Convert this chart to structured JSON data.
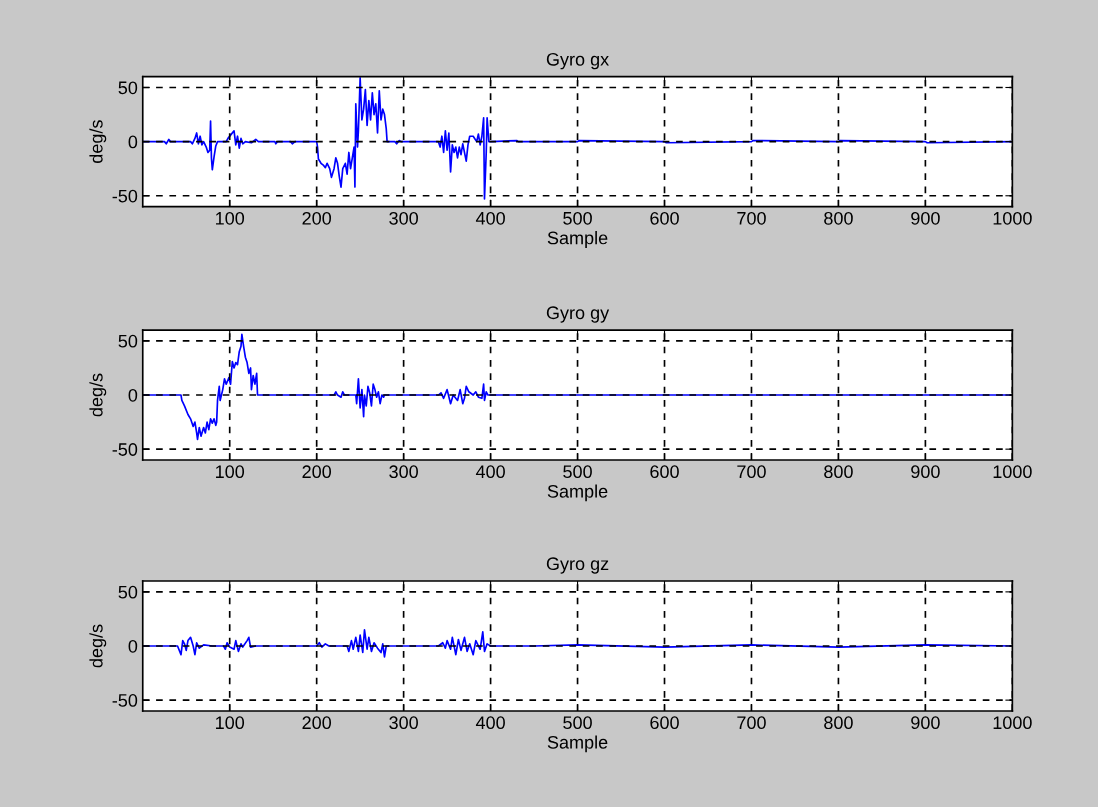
{
  "chart_data": [
    {
      "type": "line",
      "title": "Gyro gx",
      "xlabel": "Sample",
      "ylabel": "deg/s",
      "xlim": [
        0,
        1000
      ],
      "ylim": [
        -60,
        60
      ],
      "xticks": [
        100,
        200,
        300,
        400,
        500,
        600,
        700,
        800,
        900,
        1000
      ],
      "yticks": [
        -50,
        0,
        50
      ],
      "grid": true,
      "line_style": "solid",
      "series": [
        {
          "color": "#0000ff",
          "x": [
            0,
            25,
            27,
            30,
            32,
            55,
            57,
            60,
            62,
            64,
            66,
            68,
            70,
            73,
            75,
            77,
            78,
            79,
            80,
            82,
            84,
            86,
            96,
            98,
            101,
            105,
            107,
            109,
            111,
            113,
            115,
            118,
            125,
            130,
            133,
            152,
            153,
            155,
            170,
            172,
            175,
            200,
            201,
            202,
            205,
            208,
            210,
            212,
            215,
            217,
            220,
            222,
            224,
            226,
            228,
            230,
            233,
            235,
            237,
            239,
            241,
            243,
            244,
            245,
            247,
            248,
            250,
            252,
            254,
            256,
            258,
            260,
            262,
            264,
            266,
            268,
            270,
            272,
            274,
            276,
            278,
            280,
            281,
            290,
            292,
            295,
            297,
            340,
            342,
            344,
            346,
            348,
            350,
            352,
            354,
            356,
            358,
            360,
            362,
            364,
            366,
            368,
            372,
            374,
            376,
            380,
            384,
            386,
            388,
            390,
            392,
            393,
            395,
            396,
            398,
            400,
            430,
            432,
            500,
            502,
            600,
            602,
            700,
            702,
            800,
            802,
            900,
            902,
            1000
          ],
          "values": [
            0,
            0,
            -2,
            2,
            0,
            0,
            -2,
            3,
            8,
            -2,
            5,
            -3,
            0,
            -5,
            -10,
            -8,
            19,
            -15,
            -26,
            -14,
            -4,
            0,
            0,
            3,
            6,
            10,
            -3,
            5,
            -6,
            3,
            -2,
            0,
            -1,
            2,
            0,
            0,
            -2,
            0,
            0,
            -2,
            0,
            0,
            -5,
            -16,
            -20,
            -22,
            -24,
            -20,
            -25,
            -33,
            -25,
            -15,
            -20,
            -32,
            -42,
            -25,
            -20,
            -30,
            -10,
            -25,
            -15,
            -5,
            -42,
            35,
            -5,
            10,
            59,
            20,
            30,
            48,
            15,
            38,
            20,
            45,
            25,
            35,
            8,
            47,
            20,
            30,
            25,
            12,
            0,
            0,
            -2,
            1,
            0,
            0,
            -5,
            5,
            -10,
            10,
            -8,
            8,
            -28,
            -3,
            -10,
            -5,
            -15,
            -5,
            -12,
            -2,
            -18,
            -3,
            5,
            5,
            0,
            7,
            -3,
            5,
            22,
            -53,
            -10,
            22,
            0,
            0,
            1,
            0,
            0,
            1,
            0,
            -1,
            0,
            1,
            0,
            1,
            0,
            -1,
            0
          ]
        }
      ]
    },
    {
      "type": "line",
      "title": "Gyro gy",
      "xlabel": "Sample",
      "ylabel": "deg/s",
      "xlim": [
        0,
        1000
      ],
      "ylim": [
        -60,
        60
      ],
      "xticks": [
        100,
        200,
        300,
        400,
        500,
        600,
        700,
        800,
        900,
        1000
      ],
      "yticks": [
        -50,
        0,
        50
      ],
      "grid": true,
      "line_style": "solid",
      "series": [
        {
          "color": "#0000ff",
          "x": [
            0,
            44,
            45,
            48,
            52,
            55,
            58,
            60,
            62,
            63,
            65,
            67,
            70,
            72,
            74,
            76,
            78,
            80,
            82,
            84,
            85,
            86,
            88,
            89,
            92,
            94,
            96,
            99,
            101,
            103,
            105,
            107,
            109,
            111,
            113,
            114,
            116,
            118,
            120,
            122,
            124,
            125,
            127,
            129,
            131,
            132,
            134,
            220,
            222,
            224,
            228,
            230,
            232,
            245,
            246,
            248,
            250,
            252,
            254,
            255,
            257,
            259,
            261,
            263,
            265,
            267,
            269,
            271,
            273,
            275,
            277,
            278,
            340,
            343,
            346,
            350,
            354,
            357,
            362,
            365,
            368,
            370,
            372,
            375,
            380,
            383,
            386,
            390,
            392,
            393,
            395,
            397,
            1000
          ],
          "values": [
            0,
            0,
            -5,
            -10,
            -18,
            -22,
            -29,
            -25,
            -35,
            -41,
            -30,
            -38,
            -30,
            -35,
            -25,
            -32,
            -22,
            -26,
            -22,
            -28,
            -25,
            -5,
            8,
            -5,
            5,
            15,
            10,
            16,
            10,
            31,
            25,
            30,
            28,
            40,
            45,
            56,
            45,
            35,
            30,
            20,
            25,
            5,
            18,
            10,
            20,
            0,
            0,
            0,
            3,
            0,
            -2,
            3,
            0,
            0,
            -8,
            15,
            -12,
            5,
            -20,
            0,
            -10,
            8,
            2,
            -10,
            10,
            5,
            -2,
            3,
            -8,
            0,
            -2,
            0,
            0,
            2,
            -3,
            5,
            -8,
            0,
            -5,
            5,
            -8,
            -3,
            8,
            3,
            0,
            3,
            -2,
            -3,
            10,
            -5,
            3,
            0,
            0
          ]
        }
      ]
    },
    {
      "type": "line",
      "title": "Gyro gz",
      "xlabel": "Sample",
      "ylabel": "deg/s",
      "xlim": [
        0,
        1000
      ],
      "ylim": [
        -60,
        60
      ],
      "xticks": [
        100,
        200,
        300,
        400,
        500,
        600,
        700,
        800,
        900,
        1000
      ],
      "yticks": [
        -50,
        0,
        50
      ],
      "grid": true,
      "line_style": "solid",
      "series": [
        {
          "color": "#0000ff",
          "x": [
            0,
            40,
            44,
            46,
            48,
            50,
            52,
            55,
            58,
            60,
            62,
            65,
            70,
            80,
            93,
            95,
            97,
            100,
            105,
            107,
            110,
            113,
            115,
            120,
            122,
            124,
            130,
            200,
            203,
            206,
            210,
            214,
            235,
            237,
            240,
            242,
            245,
            248,
            250,
            253,
            255,
            258,
            260,
            263,
            266,
            270,
            274,
            276,
            278,
            280,
            300,
            340,
            345,
            348,
            350,
            354,
            356,
            360,
            363,
            366,
            370,
            373,
            376,
            380,
            383,
            388,
            391,
            393,
            396,
            400,
            450,
            500,
            600,
            700,
            800,
            900,
            1000
          ],
          "values": [
            0,
            0,
            -8,
            5,
            2,
            -4,
            5,
            8,
            0,
            -8,
            3,
            -2,
            1,
            0,
            0,
            -3,
            3,
            -1,
            -3,
            5,
            -5,
            2,
            -1,
            5,
            8,
            -1,
            0,
            0,
            3,
            -1,
            2,
            0,
            0,
            -5,
            5,
            -3,
            8,
            -5,
            10,
            -6,
            15,
            -3,
            8,
            -5,
            3,
            -2,
            -6,
            2,
            -10,
            0,
            0,
            0,
            3,
            -2,
            5,
            -3,
            8,
            -8,
            6,
            -4,
            8,
            -5,
            2,
            -8,
            5,
            -3,
            13,
            -5,
            2,
            0,
            0,
            1,
            -1,
            1,
            -1,
            1,
            0
          ]
        }
      ]
    }
  ]
}
